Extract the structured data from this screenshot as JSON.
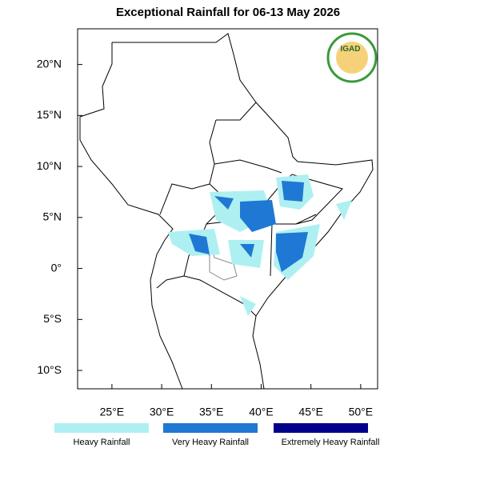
{
  "map": {
    "title": "Exceptional Rainfall for 06-13 May 2026",
    "logo_text": "IGAD",
    "xlim": [
      21.55,
      51.7
    ],
    "ylim": [
      -11.8,
      23.5
    ],
    "xticks": [
      {
        "value": 25,
        "label": "25°E"
      },
      {
        "value": 30,
        "label": "30°E"
      },
      {
        "value": 35,
        "label": "35°E"
      },
      {
        "value": 40,
        "label": "40°E"
      },
      {
        "value": 45,
        "label": "45°E"
      },
      {
        "value": 50,
        "label": "50°E"
      }
    ],
    "yticks": [
      {
        "value": 20,
        "label": "20°N"
      },
      {
        "value": 15,
        "label": "15°N"
      },
      {
        "value": 10,
        "label": "10°N"
      },
      {
        "value": 5,
        "label": "5°N"
      },
      {
        "value": 0,
        "label": "0°"
      },
      {
        "value": -5,
        "label": "5°S"
      },
      {
        "value": -10,
        "label": "10°S"
      }
    ],
    "legend": [
      {
        "name": "Heavy Rainfall",
        "color": "#aef0f2"
      },
      {
        "name": "Very Heavy Rainfall",
        "color": "#1f78d4"
      },
      {
        "name": "Extremely Heavy Rainfall",
        "color": "#00008b"
      }
    ]
  }
}
